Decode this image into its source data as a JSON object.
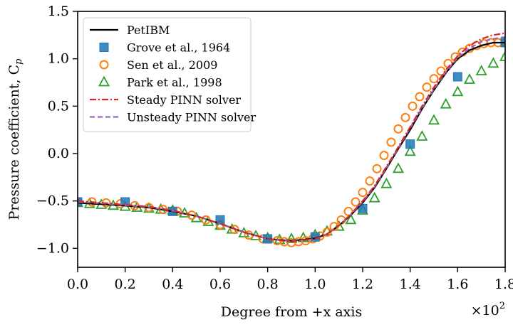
{
  "chart_data": {
    "type": "scatter",
    "xlabel": "Degree from +x axis",
    "x_multiplier_label": "×10",
    "x_multiplier_exp": "2",
    "ylabel": "Pressure coefficient, C",
    "ylabel_sub": "p",
    "xlim": [
      0,
      180
    ],
    "ylim": [
      -1.2,
      1.5
    ],
    "x_ticks": [
      0,
      20,
      40,
      60,
      80,
      100,
      120,
      140,
      160,
      180
    ],
    "x_tick_labels": [
      "0.0",
      "0.2",
      "0.4",
      "0.6",
      "0.8",
      "1.0",
      "1.2",
      "1.4",
      "1.6",
      "1.8"
    ],
    "y_ticks": [
      -1.0,
      -0.5,
      0.0,
      0.5,
      1.0,
      1.5
    ],
    "y_tick_labels": [
      "−1.0",
      "−0.5",
      "0.0",
      "0.5",
      "1.0",
      "1.5"
    ],
    "legend_position": "top-left",
    "series": [
      {
        "name": "PetIBM",
        "kind": "line",
        "color": "#000000",
        "dash": "",
        "x": [
          0,
          10,
          20,
          30,
          40,
          50,
          60,
          70,
          80,
          90,
          100,
          105,
          110,
          115,
          120,
          125,
          130,
          135,
          140,
          145,
          150,
          155,
          160,
          165,
          170,
          175,
          180
        ],
        "y": [
          -0.52,
          -0.535,
          -0.55,
          -0.57,
          -0.61,
          -0.66,
          -0.74,
          -0.83,
          -0.9,
          -0.92,
          -0.895,
          -0.85,
          -0.76,
          -0.65,
          -0.52,
          -0.36,
          -0.16,
          0.05,
          0.25,
          0.47,
          0.67,
          0.85,
          1.0,
          1.09,
          1.14,
          1.17,
          1.17
        ]
      },
      {
        "name": "Grove et al., 1964",
        "kind": "marker",
        "marker": "square",
        "color": "#1f77b4",
        "x": [
          0,
          20,
          40,
          60,
          80,
          100,
          120,
          140,
          160,
          180
        ],
        "y": [
          -0.51,
          -0.51,
          -0.61,
          -0.7,
          -0.9,
          -0.88,
          -0.58,
          0.1,
          0.81,
          1.17
        ]
      },
      {
        "name": "Sen et al., 2009",
        "kind": "marker",
        "marker": "circle",
        "color": "#ff7f0e",
        "x": [
          0,
          6,
          12,
          18,
          24,
          30,
          36,
          42,
          48,
          54,
          60,
          66,
          72,
          78,
          84,
          87,
          90,
          93,
          96,
          99,
          102,
          105,
          108,
          111,
          114,
          117,
          120,
          123,
          126,
          129,
          132,
          135,
          138,
          141,
          144,
          147,
          150,
          153,
          156,
          159,
          162,
          165,
          168,
          171,
          174,
          177,
          180
        ],
        "y": [
          -0.51,
          -0.51,
          -0.52,
          -0.53,
          -0.55,
          -0.57,
          -0.59,
          -0.61,
          -0.65,
          -0.7,
          -0.75,
          -0.8,
          -0.86,
          -0.9,
          -0.92,
          -0.93,
          -0.94,
          -0.93,
          -0.92,
          -0.9,
          -0.87,
          -0.83,
          -0.77,
          -0.7,
          -0.61,
          -0.51,
          -0.41,
          -0.29,
          -0.16,
          -0.02,
          0.12,
          0.26,
          0.38,
          0.5,
          0.6,
          0.7,
          0.79,
          0.87,
          0.95,
          1.02,
          1.07,
          1.11,
          1.14,
          1.16,
          1.17,
          1.17,
          1.17
        ]
      },
      {
        "name": "Park et al., 1998",
        "kind": "marker",
        "marker": "triangle",
        "color": "#2ca02c",
        "x": [
          0,
          5,
          10,
          15,
          20,
          25,
          30,
          35,
          40,
          45,
          50,
          55,
          60,
          65,
          70,
          75,
          80,
          85,
          90,
          95,
          100,
          105,
          110,
          115,
          120,
          125,
          130,
          135,
          140,
          145,
          150,
          155,
          160,
          165,
          170,
          175,
          180
        ],
        "y": [
          -0.52,
          -0.53,
          -0.54,
          -0.55,
          -0.56,
          -0.57,
          -0.58,
          -0.59,
          -0.6,
          -0.63,
          -0.68,
          -0.72,
          -0.76,
          -0.8,
          -0.84,
          -0.87,
          -0.89,
          -0.91,
          -0.9,
          -0.89,
          -0.86,
          -0.82,
          -0.77,
          -0.7,
          -0.6,
          -0.47,
          -0.32,
          -0.16,
          0.02,
          0.18,
          0.35,
          0.52,
          0.65,
          0.78,
          0.87,
          0.95,
          1.02
        ]
      },
      {
        "name": "Steady PINN solver",
        "kind": "line",
        "color": "#d62728",
        "dash": "9,3,2,3",
        "x": [
          0,
          10,
          20,
          30,
          40,
          50,
          60,
          70,
          80,
          90,
          100,
          105,
          110,
          115,
          120,
          125,
          130,
          135,
          140,
          145,
          150,
          155,
          160,
          165,
          170,
          175,
          180
        ],
        "y": [
          -0.5,
          -0.52,
          -0.54,
          -0.56,
          -0.6,
          -0.66,
          -0.74,
          -0.83,
          -0.9,
          -0.93,
          -0.9,
          -0.85,
          -0.76,
          -0.64,
          -0.5,
          -0.34,
          -0.14,
          0.07,
          0.28,
          0.5,
          0.7,
          0.88,
          1.03,
          1.14,
          1.21,
          1.25,
          1.27
        ]
      },
      {
        "name": "Unsteady PINN solver",
        "kind": "line",
        "color": "#9467bd",
        "dash": "7,4",
        "x": [
          0,
          10,
          20,
          30,
          40,
          50,
          60,
          70,
          80,
          90,
          100,
          105,
          110,
          115,
          120,
          125,
          130,
          135,
          140,
          145,
          150,
          155,
          160,
          165,
          170,
          175,
          180
        ],
        "y": [
          -0.51,
          -0.525,
          -0.545,
          -0.565,
          -0.605,
          -0.66,
          -0.74,
          -0.83,
          -0.9,
          -0.925,
          -0.9,
          -0.85,
          -0.76,
          -0.645,
          -0.51,
          -0.35,
          -0.15,
          0.06,
          0.27,
          0.48,
          0.68,
          0.86,
          1.01,
          1.11,
          1.18,
          1.21,
          1.23
        ]
      }
    ]
  }
}
